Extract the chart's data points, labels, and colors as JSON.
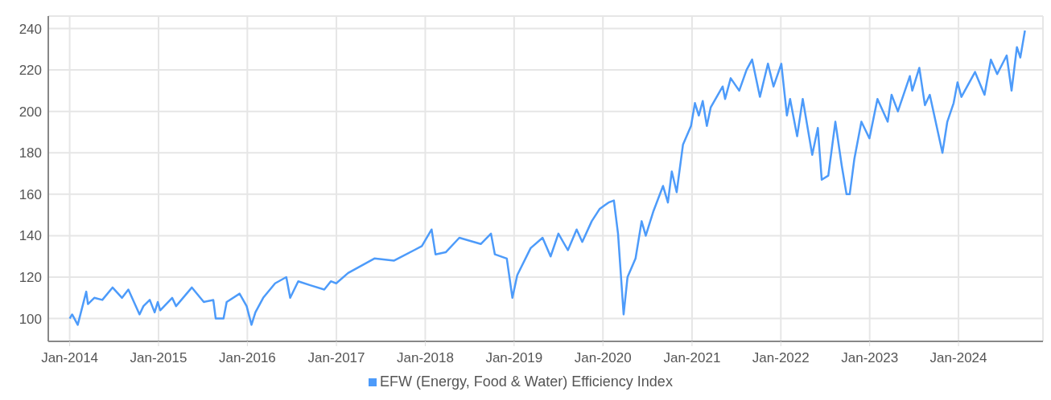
{
  "chart_data": {
    "type": "line",
    "legend": "bottom",
    "grid": true,
    "marker": "none",
    "line_style": "solid",
    "xlim": [
      "2013-10-05",
      "2024-12-13"
    ],
    "xticks": [
      {
        "value": "2014-01-01",
        "label": "Jan-2014"
      },
      {
        "value": "2015-01-01",
        "label": "Jan-2015"
      },
      {
        "value": "2016-01-01",
        "label": "Jan-2016"
      },
      {
        "value": "2017-01-01",
        "label": "Jan-2017"
      },
      {
        "value": "2018-01-01",
        "label": "Jan-2018"
      },
      {
        "value": "2019-01-01",
        "label": "Jan-2019"
      },
      {
        "value": "2020-01-01",
        "label": "Jan-2020"
      },
      {
        "value": "2021-01-01",
        "label": "Jan-2021"
      },
      {
        "value": "2022-01-01",
        "label": "Jan-2022"
      },
      {
        "value": "2023-01-01",
        "label": "Jan-2023"
      },
      {
        "value": "2024-01-01",
        "label": "Jan-2024"
      }
    ],
    "ylim": [
      89,
      246
    ],
    "yticks": [
      100,
      120,
      140,
      160,
      180,
      200,
      220,
      240
    ],
    "x": [
      "2014-01-01",
      "2014-01-11",
      "2014-02-03",
      "2014-03-10",
      "2014-03-17",
      "2014-04-12",
      "2014-05-15",
      "2014-06-26",
      "2014-08-04",
      "2014-08-30",
      "2014-10-15",
      "2014-10-31",
      "2014-11-26",
      "2014-12-16",
      "2014-12-29",
      "2015-01-08",
      "2015-02-26",
      "2015-03-14",
      "2015-05-18",
      "2015-07-06",
      "2015-08-14",
      "2015-08-24",
      "2015-09-25",
      "2015-10-08",
      "2015-11-30",
      "2015-12-29",
      "2016-01-18",
      "2016-02-03",
      "2016-03-06",
      "2016-04-24",
      "2016-06-09",
      "2016-06-25",
      "2016-07-28",
      "2016-09-18",
      "2016-11-12",
      "2016-12-09",
      "2016-12-31",
      "2017-02-18",
      "2017-06-06",
      "2017-08-26",
      "2017-11-16",
      "2017-12-18",
      "2018-01-27",
      "2018-02-12",
      "2018-03-26",
      "2018-05-21",
      "2018-08-17",
      "2018-09-28",
      "2018-10-14",
      "2018-12-02",
      "2018-12-25",
      "2019-01-14",
      "2019-03-10",
      "2019-04-28",
      "2019-05-31",
      "2019-07-02",
      "2019-08-10",
      "2019-09-15",
      "2019-10-08",
      "2019-11-16",
      "2019-12-19",
      "2020-01-24",
      "2020-02-15",
      "2020-03-03",
      "2020-03-26",
      "2020-04-11",
      "2020-05-14",
      "2020-06-08",
      "2020-06-25",
      "2020-07-27",
      "2020-09-04",
      "2020-09-24",
      "2020-10-10",
      "2020-10-30",
      "2020-11-25",
      "2020-12-28",
      "2021-01-13",
      "2021-01-29",
      "2021-02-14",
      "2021-03-03",
      "2021-03-19",
      "2021-05-07",
      "2021-05-17",
      "2021-06-09",
      "2021-07-14",
      "2021-08-13",
      "2021-09-05",
      "2021-10-07",
      "2021-11-09",
      "2021-12-02",
      "2022-01-03",
      "2022-01-26",
      "2022-02-08",
      "2022-03-09",
      "2022-04-01",
      "2022-05-10",
      "2022-06-02",
      "2022-06-18",
      "2022-07-15",
      "2022-08-13",
      "2022-09-08",
      "2022-09-28",
      "2022-10-11",
      "2022-10-30",
      "2022-11-28",
      "2022-12-31",
      "2023-02-02",
      "2023-03-16",
      "2023-04-01",
      "2023-04-27",
      "2023-06-15",
      "2023-06-25",
      "2023-07-24",
      "2023-08-16",
      "2023-09-05",
      "2023-10-27",
      "2023-11-16",
      "2023-12-12",
      "2023-12-28",
      "2024-01-13",
      "2024-03-09",
      "2024-04-17",
      "2024-05-13",
      "2024-06-08",
      "2024-07-17",
      "2024-08-06",
      "2024-08-28",
      "2024-09-11",
      "2024-09-30"
    ],
    "series": [
      {
        "name": "EFW (Energy, Food & Water) Efficiency Index",
        "color": "#4d9bfa",
        "values": [
          100,
          102,
          97,
          113,
          107,
          110,
          109,
          115,
          110,
          114,
          102,
          106,
          109,
          103,
          108,
          104,
          110,
          106,
          115,
          108,
          109,
          100,
          100,
          108,
          112,
          106,
          97,
          103,
          110,
          117,
          120,
          110,
          118,
          116,
          114,
          118,
          117,
          122,
          129,
          128,
          133,
          135,
          143,
          131,
          132,
          139,
          136,
          141,
          131,
          129,
          110,
          121,
          134,
          139,
          130,
          141,
          133,
          143,
          137,
          147,
          153,
          156,
          157,
          141,
          102,
          120,
          129,
          147,
          140,
          152,
          164,
          156,
          171,
          161,
          184,
          193,
          204,
          198,
          205,
          193,
          202,
          212,
          206,
          216,
          210,
          220,
          225,
          207,
          223,
          212,
          223,
          198,
          206,
          188,
          206,
          179,
          192,
          167,
          169,
          195,
          174,
          160,
          160,
          177,
          195,
          187,
          206,
          195,
          208,
          200,
          217,
          210,
          221,
          203,
          208,
          180,
          195,
          204,
          214,
          207,
          219,
          208,
          225,
          218,
          227,
          210,
          231,
          226,
          239
        ]
      }
    ]
  }
}
